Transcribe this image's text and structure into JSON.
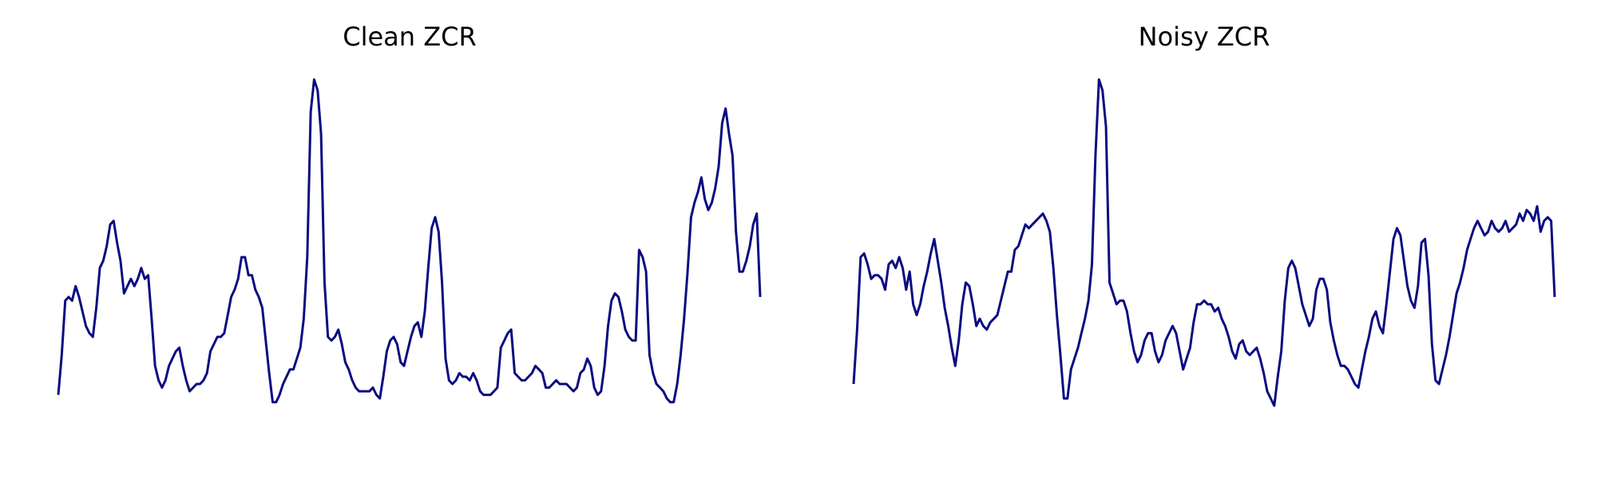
{
  "figure": {
    "background": "#ffffff",
    "line_color": "#0b0b80"
  },
  "chart_data": [
    {
      "type": "line",
      "title": "Clean ZCR",
      "axes_visible": false,
      "grid": false,
      "series": [
        {
          "values": [
            0.1,
            0.21,
            0.36,
            0.37,
            0.36,
            0.4,
            0.37,
            0.33,
            0.29,
            0.27,
            0.26,
            0.34,
            0.45,
            0.47,
            0.51,
            0.57,
            0.58,
            0.52,
            0.47,
            0.38,
            0.4,
            0.42,
            0.4,
            0.42,
            0.45,
            0.42,
            0.43,
            0.31,
            0.18,
            0.14,
            0.12,
            0.14,
            0.18,
            0.2,
            0.22,
            0.23,
            0.18,
            0.14,
            0.11,
            0.12,
            0.13,
            0.13,
            0.14,
            0.16,
            0.22,
            0.24,
            0.26,
            0.26,
            0.27,
            0.32,
            0.37,
            0.39,
            0.42,
            0.48,
            0.48,
            0.43,
            0.43,
            0.39,
            0.37,
            0.34,
            0.25,
            0.16,
            0.08,
            0.08,
            0.1,
            0.13,
            0.15,
            0.17,
            0.17,
            0.2,
            0.23,
            0.31,
            0.48,
            0.88,
            0.97,
            0.94,
            0.82,
            0.41,
            0.26,
            0.25,
            0.26,
            0.28,
            0.24,
            0.19,
            0.17,
            0.14,
            0.12,
            0.11,
            0.11,
            0.11,
            0.11,
            0.12,
            0.1,
            0.09,
            0.15,
            0.22,
            0.25,
            0.26,
            0.24,
            0.19,
            0.18,
            0.22,
            0.26,
            0.29,
            0.3,
            0.26,
            0.33,
            0.45,
            0.56,
            0.59,
            0.55,
            0.41,
            0.2,
            0.14,
            0.13,
            0.14,
            0.16,
            0.15,
            0.15,
            0.14,
            0.16,
            0.14,
            0.11,
            0.1,
            0.1,
            0.1,
            0.11,
            0.12,
            0.23,
            0.25,
            0.27,
            0.28,
            0.16,
            0.15,
            0.14,
            0.14,
            0.15,
            0.16,
            0.18,
            0.17,
            0.16,
            0.12,
            0.12,
            0.13,
            0.14,
            0.13,
            0.13,
            0.13,
            0.12,
            0.11,
            0.12,
            0.16,
            0.17,
            0.2,
            0.18,
            0.12,
            0.1,
            0.11,
            0.18,
            0.29,
            0.36,
            0.38,
            0.37,
            0.33,
            0.28,
            0.26,
            0.25,
            0.25,
            0.5,
            0.48,
            0.44,
            0.21,
            0.16,
            0.13,
            0.12,
            0.11,
            0.09,
            0.08,
            0.08,
            0.13,
            0.21,
            0.31,
            0.44,
            0.59,
            0.63,
            0.66,
            0.7,
            0.64,
            0.61,
            0.63,
            0.67,
            0.73,
            0.85,
            0.89,
            0.82,
            0.76,
            0.55,
            0.44,
            0.44,
            0.47,
            0.51,
            0.57,
            0.6,
            0.37
          ]
        }
      ]
    },
    {
      "type": "line",
      "title": "Noisy ZCR",
      "axes_visible": false,
      "grid": false,
      "series": [
        {
          "values": [
            0.13,
            0.28,
            0.48,
            0.49,
            0.46,
            0.42,
            0.43,
            0.43,
            0.42,
            0.39,
            0.46,
            0.47,
            0.45,
            0.48,
            0.45,
            0.39,
            0.44,
            0.35,
            0.32,
            0.35,
            0.4,
            0.44,
            0.49,
            0.53,
            0.47,
            0.41,
            0.34,
            0.29,
            0.23,
            0.18,
            0.25,
            0.35,
            0.41,
            0.4,
            0.35,
            0.29,
            0.31,
            0.29,
            0.28,
            0.3,
            0.31,
            0.32,
            0.36,
            0.4,
            0.44,
            0.44,
            0.5,
            0.51,
            0.54,
            0.57,
            0.56,
            0.57,
            0.58,
            0.59,
            0.6,
            0.58,
            0.55,
            0.45,
            0.32,
            0.21,
            0.09,
            0.09,
            0.17,
            0.2,
            0.23,
            0.27,
            0.31,
            0.36,
            0.46,
            0.76,
            0.97,
            0.94,
            0.84,
            0.41,
            0.38,
            0.35,
            0.36,
            0.36,
            0.33,
            0.27,
            0.22,
            0.19,
            0.21,
            0.25,
            0.27,
            0.27,
            0.22,
            0.19,
            0.21,
            0.25,
            0.27,
            0.29,
            0.27,
            0.22,
            0.17,
            0.2,
            0.23,
            0.3,
            0.35,
            0.35,
            0.36,
            0.35,
            0.35,
            0.33,
            0.34,
            0.31,
            0.29,
            0.26,
            0.22,
            0.2,
            0.24,
            0.25,
            0.22,
            0.21,
            0.22,
            0.23,
            0.2,
            0.16,
            0.11,
            0.09,
            0.07,
            0.15,
            0.22,
            0.36,
            0.45,
            0.47,
            0.45,
            0.4,
            0.35,
            0.32,
            0.29,
            0.31,
            0.39,
            0.42,
            0.42,
            0.39,
            0.3,
            0.25,
            0.21,
            0.18,
            0.18,
            0.17,
            0.15,
            0.13,
            0.12,
            0.17,
            0.22,
            0.26,
            0.31,
            0.33,
            0.29,
            0.27,
            0.35,
            0.44,
            0.53,
            0.56,
            0.54,
            0.47,
            0.4,
            0.36,
            0.34,
            0.4,
            0.52,
            0.53,
            0.43,
            0.24,
            0.14,
            0.13,
            0.17,
            0.21,
            0.26,
            0.32,
            0.38,
            0.41,
            0.45,
            0.5,
            0.53,
            0.56,
            0.58,
            0.56,
            0.54,
            0.55,
            0.58,
            0.56,
            0.55,
            0.56,
            0.58,
            0.55,
            0.56,
            0.57,
            0.6,
            0.58,
            0.61,
            0.6,
            0.58,
            0.62,
            0.55,
            0.58,
            0.59,
            0.58,
            0.37
          ]
        }
      ]
    }
  ]
}
